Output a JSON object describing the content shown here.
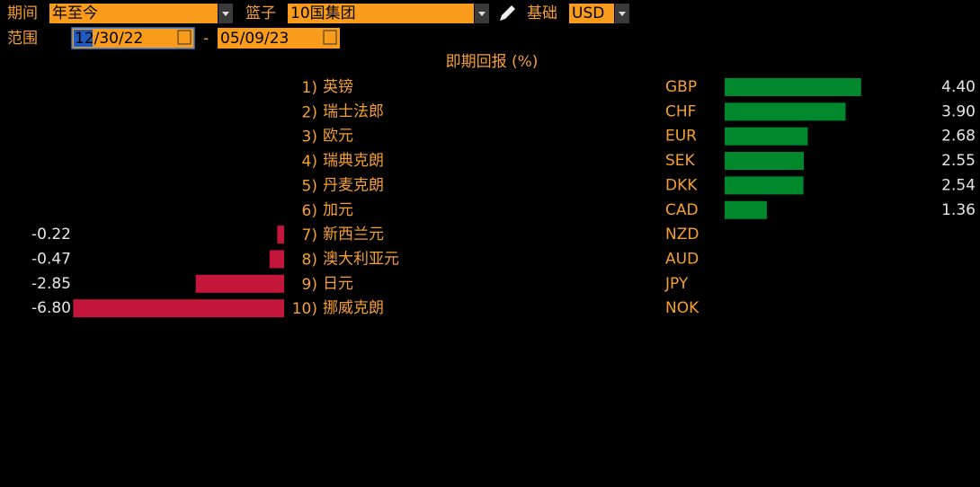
{
  "header": {
    "period_label": "期间",
    "period": "年至今",
    "basket_label": "篮子",
    "basket": "10国集团",
    "base_label": "基础",
    "base": "USD",
    "range_label": "范围",
    "start_date": "12/30/22",
    "separator": "-",
    "end_date": "05/09/23"
  },
  "chart_data": {
    "type": "bar",
    "orientation": "horizontal",
    "title": "即期回报 (%)",
    "ranks": [
      "1)",
      "2)",
      "3)",
      "4)",
      "5)",
      "6)",
      "7)",
      "8)",
      "9)",
      "10)"
    ],
    "categories": [
      "英镑",
      "瑞士法郎",
      "欧元",
      "瑞典克朗",
      "丹麦克朗",
      "加元",
      "新西兰元",
      "澳大利亚元",
      "日元",
      "挪威克朗"
    ],
    "codes": [
      "GBP",
      "CHF",
      "EUR",
      "SEK",
      "DKK",
      "CAD",
      "NZD",
      "AUD",
      "JPY",
      "NOK"
    ],
    "values": [
      4.4,
      3.9,
      2.68,
      2.55,
      2.54,
      1.36,
      -0.22,
      -0.47,
      -2.85,
      -6.8
    ],
    "value_labels": [
      "4.40",
      "3.90",
      "2.68",
      "2.55",
      "2.54",
      "1.36",
      "-0.22",
      "-0.47",
      "-2.85",
      "-6.80"
    ],
    "positive_color": "#00892c",
    "negative_color": "#c4153a"
  }
}
